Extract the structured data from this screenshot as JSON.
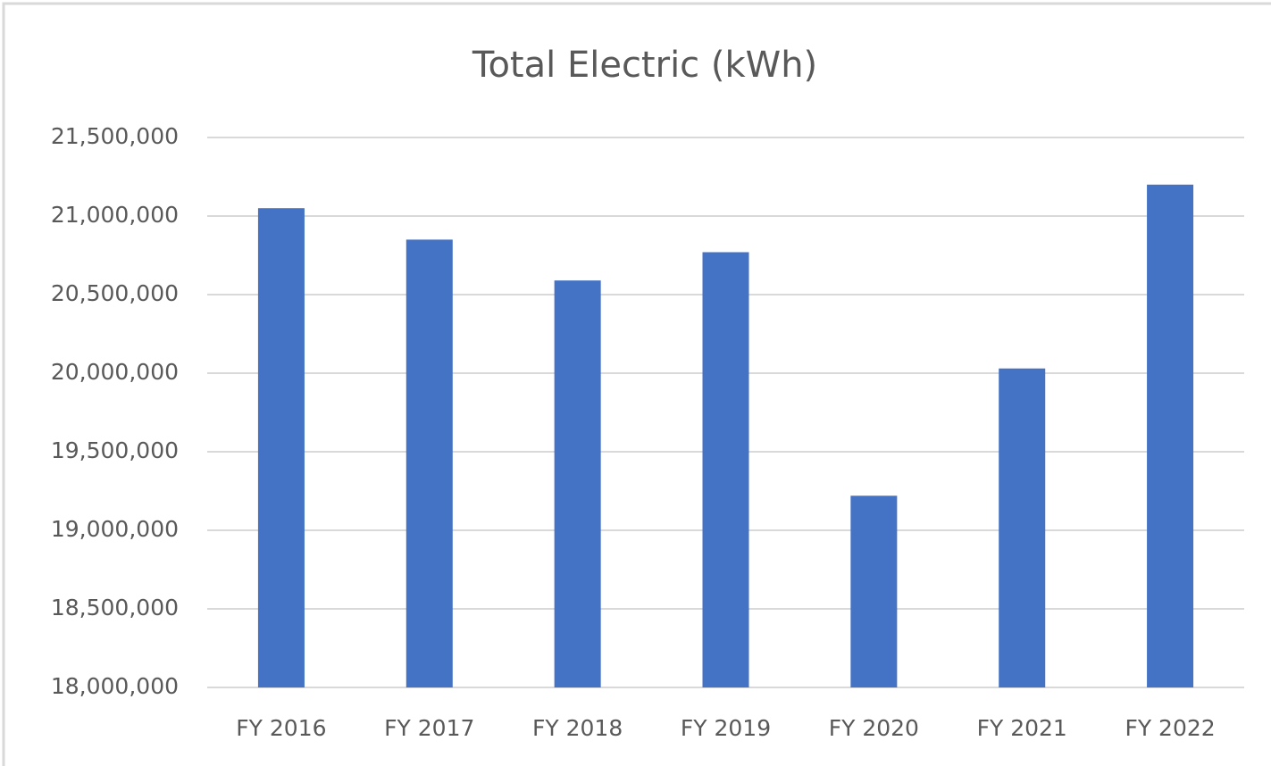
{
  "chart_data": {
    "type": "bar",
    "title": "Total Electric (kWh)",
    "categories": [
      "FY 2016",
      "FY 2017",
      "FY 2018",
      "FY 2019",
      "FY 2020",
      "FY 2021",
      "FY 2022"
    ],
    "values": [
      21050000,
      20850000,
      20590000,
      20770000,
      19220000,
      20030000,
      21200000
    ],
    "color": "#4472c4",
    "ylim": [
      18000000,
      21500000
    ],
    "yticks": [
      {
        "value": 18000000,
        "label": "18,000,000"
      },
      {
        "value": 18500000,
        "label": "18,500,000"
      },
      {
        "value": 19000000,
        "label": "19,000,000"
      },
      {
        "value": 19500000,
        "label": "19,500,000"
      },
      {
        "value": 20000000,
        "label": "20,000,000"
      },
      {
        "value": 20500000,
        "label": "20,500,000"
      },
      {
        "value": 21000000,
        "label": "21,000,000"
      },
      {
        "value": 21500000,
        "label": "21,500,000"
      }
    ],
    "grid": true
  }
}
